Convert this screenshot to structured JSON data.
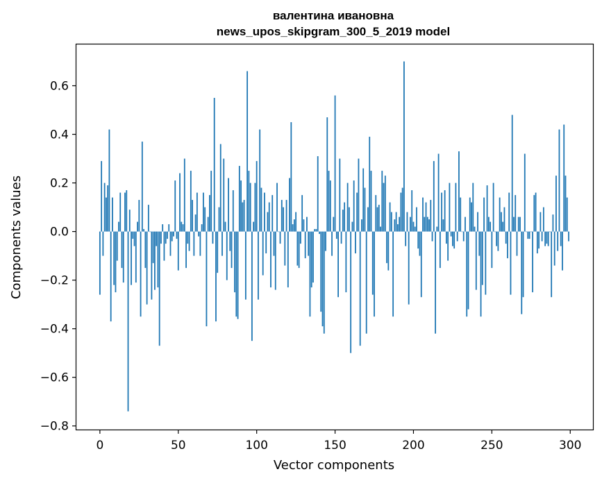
{
  "chart_data": {
    "type": "bar",
    "title": [
      "валентина ивановна",
      "news_upos_skipgram_300_5_2019 model"
    ],
    "xlabel": "Vector components",
    "ylabel": "Components values",
    "xlim": [
      -15,
      314.5
    ],
    "ylim": [
      -0.815,
      0.77
    ],
    "xticks": [
      0,
      50,
      100,
      150,
      200,
      250,
      300
    ],
    "xtick_labels": [
      "0",
      "50",
      "100",
      "150",
      "200",
      "250",
      "300"
    ],
    "yticks": [
      -0.8,
      -0.6,
      -0.4,
      -0.2,
      0.0,
      0.2,
      0.4,
      0.6
    ],
    "ytick_labels": [
      "−0.8",
      "−0.6",
      "−0.4",
      "−0.2",
      "0.0",
      "0.2",
      "0.4",
      "0.6"
    ],
    "grid": false,
    "bar_color": "#1f77b4",
    "x": [
      0,
      1,
      2,
      3,
      4,
      5,
      6,
      7,
      8,
      9,
      10,
      11,
      12,
      13,
      14,
      15,
      16,
      17,
      18,
      19,
      20,
      21,
      22,
      23,
      24,
      25,
      26,
      27,
      28,
      29,
      30,
      31,
      32,
      33,
      34,
      35,
      36,
      37,
      38,
      39,
      40,
      41,
      42,
      43,
      44,
      45,
      46,
      47,
      48,
      49,
      50,
      51,
      52,
      53,
      54,
      55,
      56,
      57,
      58,
      59,
      60,
      61,
      62,
      63,
      64,
      65,
      66,
      67,
      68,
      69,
      70,
      71,
      72,
      73,
      74,
      75,
      76,
      77,
      78,
      79,
      80,
      81,
      82,
      83,
      84,
      85,
      86,
      87,
      88,
      89,
      90,
      91,
      92,
      93,
      94,
      95,
      96,
      97,
      98,
      99,
      100,
      101,
      102,
      103,
      104,
      105,
      106,
      107,
      108,
      109,
      110,
      111,
      112,
      113,
      114,
      115,
      116,
      117,
      118,
      119,
      120,
      121,
      122,
      123,
      124,
      125,
      126,
      127,
      128,
      129,
      130,
      131,
      132,
      133,
      134,
      135,
      136,
      137,
      138,
      139,
      140,
      141,
      142,
      143,
      144,
      145,
      146,
      147,
      148,
      149,
      150,
      151,
      152,
      153,
      154,
      155,
      156,
      157,
      158,
      159,
      160,
      161,
      162,
      163,
      164,
      165,
      166,
      167,
      168,
      169,
      170,
      171,
      172,
      173,
      174,
      175,
      176,
      177,
      178,
      179,
      180,
      181,
      182,
      183,
      184,
      185,
      186,
      187,
      188,
      189,
      190,
      191,
      192,
      193,
      194,
      195,
      196,
      197,
      198,
      199,
      200,
      201,
      202,
      203,
      204,
      205,
      206,
      207,
      208,
      209,
      210,
      211,
      212,
      213,
      214,
      215,
      216,
      217,
      218,
      219,
      220,
      221,
      222,
      223,
      224,
      225,
      226,
      227,
      228,
      229,
      230,
      231,
      232,
      233,
      234,
      235,
      236,
      237,
      238,
      239,
      240,
      241,
      242,
      243,
      244,
      245,
      246,
      247,
      248,
      249,
      250,
      251,
      252,
      253,
      254,
      255,
      256,
      257,
      258,
      259,
      260,
      261,
      262,
      263,
      264,
      265,
      266,
      267,
      268,
      269,
      270,
      271,
      272,
      273,
      274,
      275,
      276,
      277,
      278,
      279,
      280,
      281,
      282,
      283,
      284,
      285,
      286,
      287,
      288,
      289,
      290,
      291,
      292,
      293,
      294,
      295,
      296,
      297,
      298,
      299
    ],
    "values": [
      -0.26,
      0.29,
      -0.1,
      0.2,
      0.14,
      0.19,
      0.42,
      -0.37,
      0.14,
      -0.22,
      -0.25,
      -0.12,
      0.04,
      0.16,
      -0.15,
      -0.21,
      0.16,
      0.17,
      -0.74,
      0.09,
      -0.22,
      -0.03,
      -0.06,
      -0.21,
      0.04,
      0.13,
      -0.35,
      0.37,
      0.01,
      -0.15,
      -0.3,
      0.11,
      0.0,
      -0.28,
      -0.13,
      -0.24,
      -0.06,
      -0.23,
      -0.47,
      -0.05,
      0.03,
      -0.12,
      -0.05,
      -0.03,
      0.03,
      -0.1,
      -0.04,
      -0.02,
      0.21,
      -0.03,
      -0.16,
      0.24,
      0.04,
      0.03,
      0.3,
      -0.15,
      -0.05,
      -0.08,
      0.25,
      0.13,
      -0.1,
      0.07,
      0.16,
      -0.02,
      -0.1,
      0.03,
      0.16,
      0.1,
      -0.39,
      0.06,
      0.15,
      0.25,
      -0.05,
      0.55,
      -0.37,
      -0.17,
      0.1,
      0.36,
      -0.1,
      0.3,
      0.04,
      -0.2,
      0.22,
      -0.08,
      -0.15,
      0.17,
      -0.25,
      -0.35,
      -0.36,
      0.27,
      0.21,
      0.12,
      0.13,
      -0.28,
      0.66,
      0.25,
      0.2,
      -0.45,
      0.04,
      0.2,
      0.29,
      -0.28,
      0.42,
      0.18,
      -0.18,
      0.16,
      -0.09,
      0.08,
      0.12,
      -0.23,
      0.15,
      -0.1,
      -0.24,
      0.2,
      0.0,
      -0.05,
      0.13,
      0.1,
      -0.14,
      0.13,
      -0.23,
      0.22,
      0.45,
      0.03,
      0.05,
      0.08,
      -0.14,
      -0.15,
      -0.05,
      0.15,
      0.05,
      -0.11,
      0.06,
      -0.1,
      -0.35,
      -0.23,
      -0.21,
      0.01,
      0.01,
      0.31,
      -0.01,
      -0.33,
      -0.39,
      -0.42,
      -0.08,
      0.47,
      0.25,
      0.21,
      -0.1,
      0.06,
      0.56,
      -0.03,
      -0.27,
      0.3,
      -0.05,
      0.09,
      0.12,
      -0.25,
      0.2,
      0.1,
      -0.5,
      0.04,
      0.21,
      -0.09,
      0.16,
      0.3,
      -0.47,
      0.05,
      0.26,
      0.18,
      -0.42,
      0.1,
      0.39,
      0.25,
      -0.26,
      -0.35,
      0.15,
      0.1,
      0.11,
      0.02,
      0.25,
      0.2,
      0.23,
      -0.13,
      -0.16,
      0.12,
      0.08,
      -0.35,
      0.05,
      0.08,
      0.03,
      0.06,
      0.16,
      0.18,
      0.7,
      -0.06,
      0.08,
      -0.3,
      0.06,
      0.17,
      0.04,
      0.02,
      0.1,
      -0.07,
      -0.1,
      -0.27,
      0.14,
      0.06,
      0.12,
      0.06,
      0.05,
      0.13,
      -0.04,
      0.29,
      -0.42,
      0.02,
      0.32,
      -0.15,
      0.16,
      0.05,
      0.17,
      -0.05,
      -0.12,
      0.2,
      -0.02,
      -0.06,
      -0.07,
      0.2,
      -0.04,
      0.33,
      0.14,
      0.0,
      -0.04,
      0.06,
      -0.35,
      -0.32,
      0.14,
      0.12,
      0.2,
      0.02,
      -0.24,
      0.08,
      -0.1,
      -0.35,
      -0.22,
      0.14,
      -0.26,
      0.19,
      0.06,
      0.04,
      -0.15,
      0.2,
      0.0,
      -0.06,
      -0.08,
      0.14,
      0.08,
      0.04,
      0.1,
      -0.05,
      -0.11,
      0.16,
      -0.26,
      0.48,
      0.06,
      0.15,
      -0.1,
      0.06,
      0.06,
      -0.34,
      -0.27,
      0.32,
      0.0,
      -0.03,
      -0.03,
      0.0,
      -0.25,
      0.15,
      0.16,
      -0.09,
      -0.07,
      0.08,
      -0.04,
      0.1,
      -0.06,
      -0.05,
      -0.06,
      0.0,
      -0.27,
      0.07,
      -0.14,
      0.23,
      -0.08,
      0.42,
      -0.06,
      -0.16,
      0.44,
      0.23,
      0.14,
      -0.04
    ]
  }
}
